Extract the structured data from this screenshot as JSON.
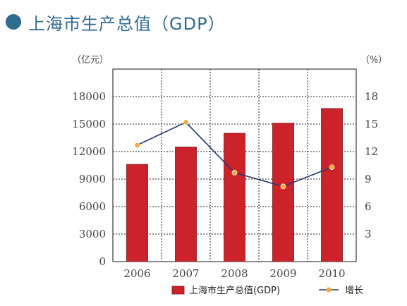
{
  "header": {
    "title": "上海市生产总值（GDP）"
  },
  "chart_data": {
    "type": "bar",
    "categories": [
      "2006",
      "2007",
      "2008",
      "2009",
      "2010"
    ],
    "title": "上海市生产总值（GDP）",
    "left_axis": {
      "unit_label": "（亿元）",
      "ylim": [
        0,
        21000
      ],
      "ticks": [
        0,
        3000,
        6000,
        9000,
        12000,
        15000,
        18000
      ]
    },
    "right_axis": {
      "unit_label": "（%）",
      "ylim": [
        0,
        21
      ],
      "ticks": [
        3,
        6,
        9,
        12,
        15,
        18
      ]
    },
    "series": [
      {
        "name": "上海市生产总值(GDP)",
        "type": "bar",
        "axis": "left",
        "color": "#cc2229",
        "values": [
          10600,
          12500,
          14000,
          15100,
          16700
        ]
      },
      {
        "name": "增长",
        "type": "line",
        "axis": "right",
        "line_color": "#243a6b",
        "marker_color": "#f2a93b",
        "values": [
          12.7,
          15.2,
          9.7,
          8.2,
          10.3
        ]
      }
    ],
    "grid": true,
    "legend_position": "bottom-right"
  }
}
